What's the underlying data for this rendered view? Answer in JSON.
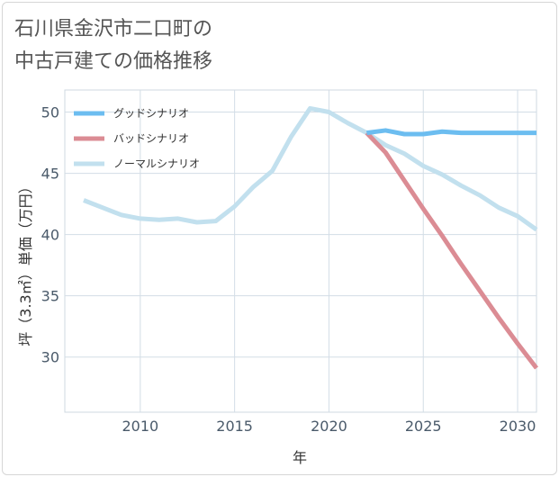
{
  "title_line1": "石川県金沢市二口町の",
  "title_line2": "中古戸建ての価格推移",
  "chart_data": {
    "type": "line",
    "xlabel": "年",
    "ylabel": "坪（3.3㎡）単価（万円）",
    "xlim": [
      2006,
      2031
    ],
    "ylim": [
      25.5,
      51.8
    ],
    "x_ticks": [
      2010,
      2015,
      2020,
      2025,
      2030
    ],
    "y_ticks": [
      30,
      35,
      40,
      45,
      50
    ],
    "grid": true,
    "legend_position": "top-left",
    "series": [
      {
        "name": "グッドシナリオ",
        "color": "#6cbdf0",
        "x": [
          2022,
          2023,
          2024,
          2025,
          2026,
          2027,
          2028,
          2029,
          2030,
          2031
        ],
        "y": [
          48.3,
          48.5,
          48.2,
          48.2,
          48.4,
          48.3,
          48.3,
          48.3,
          48.3,
          48.3
        ]
      },
      {
        "name": "バッドシナリオ",
        "color": "#db8c94",
        "x": [
          2022,
          2023,
          2024,
          2025,
          2026,
          2027,
          2028,
          2029,
          2030,
          2031
        ],
        "y": [
          48.3,
          46.7,
          44.4,
          42.1,
          39.9,
          37.6,
          35.4,
          33.2,
          31.1,
          29.1
        ]
      },
      {
        "name": "ノーマルシナリオ",
        "color": "#c2e0ee",
        "x": [
          2007,
          2008,
          2009,
          2010,
          2011,
          2012,
          2013,
          2014,
          2015,
          2016,
          2017,
          2018,
          2019,
          2020,
          2021,
          2022,
          2023,
          2024,
          2025,
          2026,
          2027,
          2028,
          2029,
          2030,
          2031
        ],
        "y": [
          42.8,
          42.2,
          41.6,
          41.3,
          41.2,
          41.3,
          41.0,
          41.1,
          42.3,
          43.9,
          45.2,
          48.0,
          50.3,
          50.0,
          49.1,
          48.3,
          47.3,
          46.6,
          45.6,
          44.9,
          44.0,
          43.2,
          42.2,
          41.5,
          40.4
        ]
      }
    ]
  }
}
